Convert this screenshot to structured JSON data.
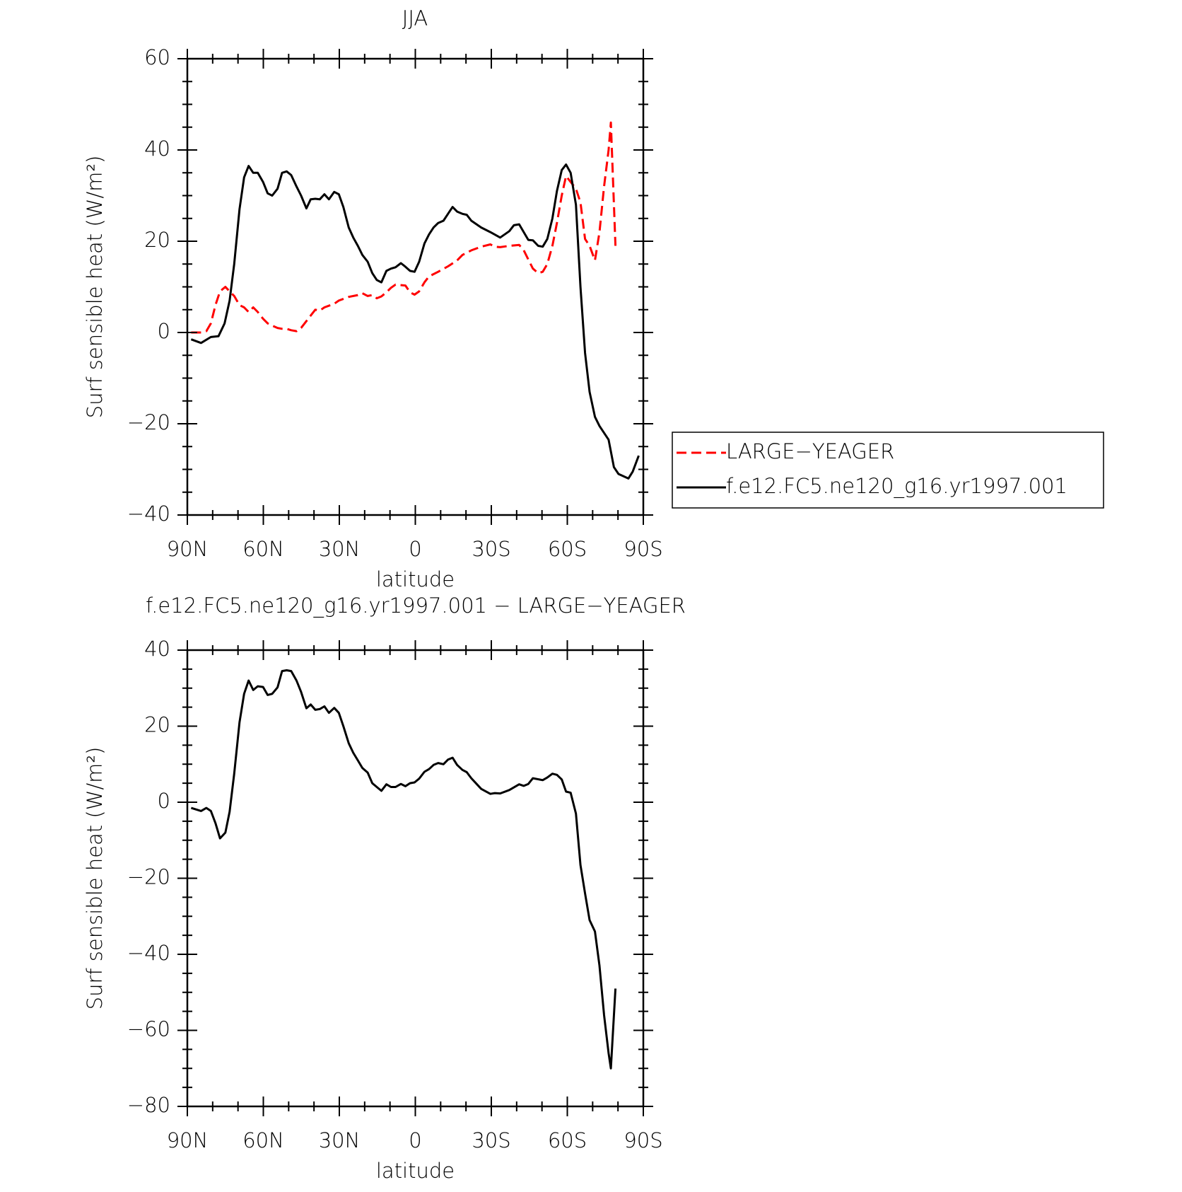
{
  "chart_data": [
    {
      "type": "line",
      "title": "JJA",
      "x_label": "latitude",
      "y_label": "Surf sensible heat (W/m²)",
      "xlim": [
        90,
        -90
      ],
      "xticks": [
        {
          "value": 90,
          "label": "90N"
        },
        {
          "value": 60,
          "label": "60N"
        },
        {
          "value": 30,
          "label": "30N"
        },
        0,
        {
          "value": -30,
          "label": "30S"
        },
        {
          "value": -60,
          "label": "60S"
        },
        {
          "value": -90,
          "label": "90S"
        }
      ],
      "xminorticks": [
        80,
        70,
        50,
        40,
        20,
        10,
        -10,
        -20,
        -40,
        -50,
        -70,
        -80
      ],
      "ylim": [
        -40,
        60
      ],
      "yticks": [
        {
          "value": -40,
          "label": "−40"
        },
        {
          "value": -20,
          "label": "−20"
        },
        0,
        20,
        40,
        60
      ],
      "yminorticks": [
        -35,
        -30,
        -25,
        -15,
        -10,
        -5,
        5,
        10,
        15,
        25,
        30,
        35,
        45,
        50,
        55
      ],
      "legend": "outside-right",
      "series": [
        {
          "name": "LARGE−YEAGER",
          "color": "#ff0000",
          "line_style": "dashed",
          "x": [
            88.5,
            84.6,
            82.5,
            80.7,
            78.9,
            77.1,
            75,
            73.3,
            71.5,
            69.4,
            67.6,
            65.8,
            64,
            62.2,
            60.1,
            58.3,
            56.5,
            54.4,
            52.6,
            50.8,
            49,
            46.9,
            45.1,
            43,
            41.3,
            39.5,
            37.7,
            35.9,
            32,
            30.2,
            26.3,
            22.7,
            20.9,
            18.8,
            17,
            15.2,
            13.4,
            11.4,
            9.6,
            7.8,
            3.9,
            2.1,
            0.3,
            -1.5,
            -3.6,
            -5.4,
            -9,
            -12.9,
            -16.5,
            -18.6,
            -22.1,
            -26,
            -29.6,
            -31.4,
            -33.5,
            -37.1,
            -41,
            -42.8,
            -44.6,
            -46.4,
            -48.5,
            -50.3,
            -52.1,
            -54.1,
            -55.9,
            -57.8,
            -59.5,
            -61.3,
            -63.4,
            -65.2,
            -67,
            -68.8,
            -70.9,
            -72.7,
            -74.5,
            -76.3,
            -77.2,
            -79
          ],
          "values": [
            0,
            0,
            0.3,
            2,
            6,
            9,
            10,
            9,
            8,
            6,
            5.5,
            4.5,
            5.5,
            4.5,
            3,
            2,
            1.5,
            1,
            0.8,
            0.8,
            0.5,
            0.3,
            1,
            2.5,
            3.7,
            5,
            4.8,
            5.5,
            6.3,
            7,
            7.8,
            8.2,
            8.6,
            8,
            8.2,
            7.5,
            7.9,
            8.8,
            9.8,
            10.5,
            10.3,
            8.8,
            8.3,
            9,
            11,
            12.3,
            13.3,
            14.5,
            15.8,
            17,
            18,
            18.8,
            19.3,
            18.8,
            18.7,
            19,
            19.2,
            18,
            16,
            14,
            13,
            13.3,
            15,
            19,
            24,
            30,
            34.3,
            33,
            31.5,
            28.5,
            20.5,
            19,
            15.8,
            22,
            32,
            40,
            46,
            19
          ]
        },
        {
          "name": "f.e12.FC5.ne120_g16.yr1997.001",
          "color": "#000000",
          "line_style": "solid",
          "x": [
            88.5,
            84.6,
            80.7,
            77.7,
            75.3,
            73.3,
            71.5,
            69.4,
            67.6,
            65.8,
            64,
            62.2,
            60.1,
            58.3,
            56.5,
            54.4,
            52.6,
            50.8,
            49,
            46.9,
            45.1,
            43,
            41.3,
            39.5,
            37.7,
            35.9,
            34.1,
            32,
            30.2,
            28.4,
            26.3,
            24.5,
            22.7,
            20.9,
            18.8,
            17,
            15.2,
            13.4,
            11.4,
            9.6,
            7.8,
            5.7,
            3.9,
            2.1,
            0.3,
            -1.5,
            -3.6,
            -5.4,
            -7.2,
            -9,
            -11.1,
            -12.9,
            -14.7,
            -16.5,
            -18.6,
            -20.3,
            -22.1,
            -26,
            -29.6,
            -33.5,
            -37.1,
            -38.9,
            -41,
            -44.6,
            -46.4,
            -48.5,
            -50.3,
            -52.1,
            -54.1,
            -55.9,
            -57.8,
            -59.5,
            -61.3,
            -63.4,
            -65.2,
            -67,
            -68.8,
            -70.9,
            -72.7,
            -76.3,
            -78.4,
            -80.2,
            -84.1,
            -85.8,
            -88.2
          ],
          "values": [
            -1.5,
            -2.3,
            -1,
            -0.8,
            2,
            7,
            15,
            27,
            34,
            36.5,
            35,
            35,
            33,
            30.5,
            30,
            31.5,
            35,
            35.3,
            34.5,
            32,
            30,
            27.2,
            29.2,
            29.3,
            29.2,
            30.3,
            29.2,
            30.8,
            30.3,
            27.5,
            23,
            20.8,
            19,
            17,
            15.5,
            13,
            11.5,
            11,
            13.5,
            14,
            14.3,
            15.2,
            14.4,
            13.5,
            13.3,
            15.5,
            19.5,
            21.5,
            23,
            24,
            24.5,
            26,
            27.5,
            26.5,
            26,
            25.8,
            24.5,
            23,
            22,
            20.8,
            22.2,
            23.5,
            23.7,
            20.3,
            20.2,
            19,
            18.8,
            20.5,
            25,
            31,
            35.6,
            36.8,
            35,
            28,
            10,
            -4.5,
            -13,
            -18.5,
            -20.5,
            -23.5,
            -29.5,
            -31,
            -32,
            -30.5,
            -27
          ]
        }
      ]
    },
    {
      "type": "line",
      "title": "f.e12.FC5.ne120_g16.yr1997.001 − LARGE−YEAGER",
      "x_label": "latitude",
      "y_label": "Surf sensible heat (W/m²)",
      "xlim": [
        90,
        -90
      ],
      "xticks": [
        {
          "value": 90,
          "label": "90N"
        },
        {
          "value": 60,
          "label": "60N"
        },
        {
          "value": 30,
          "label": "30N"
        },
        0,
        {
          "value": -30,
          "label": "30S"
        },
        {
          "value": -60,
          "label": "60S"
        },
        {
          "value": -90,
          "label": "90S"
        }
      ],
      "xminorticks": [
        80,
        70,
        50,
        40,
        20,
        10,
        -10,
        -20,
        -40,
        -50,
        -70,
        -80
      ],
      "ylim": [
        -80,
        40
      ],
      "yticks": [
        {
          "value": -80,
          "label": "−80"
        },
        {
          "value": -60,
          "label": "−60"
        },
        {
          "value": -40,
          "label": "−40"
        },
        {
          "value": -20,
          "label": "−20"
        },
        0,
        20,
        40
      ],
      "yminorticks": [
        -75,
        -70,
        -65,
        -55,
        -50,
        -45,
        -35,
        -30,
        -25,
        -15,
        -10,
        -5,
        5,
        10,
        15,
        25,
        30,
        35
      ],
      "series": [
        {
          "color": "#000000",
          "line_style": "solid",
          "x": [
            88.5,
            84.6,
            82.5,
            80.7,
            78.9,
            77.1,
            75,
            73.3,
            71.5,
            69.4,
            67.6,
            65.8,
            64,
            62.2,
            60.1,
            58.3,
            56.5,
            54.4,
            52.6,
            50.8,
            49,
            46.9,
            45.1,
            43,
            41.3,
            39.5,
            37.7,
            35.9,
            34.1,
            32,
            30.2,
            28.4,
            26.3,
            24.5,
            22.7,
            20.9,
            18.8,
            17,
            15.2,
            13.4,
            11.4,
            9.6,
            7.8,
            5.7,
            3.9,
            2.1,
            0.3,
            -1.5,
            -3.6,
            -5.4,
            -7.2,
            -9,
            -11.1,
            -12.9,
            -14.7,
            -16.5,
            -18.6,
            -20.3,
            -22.1,
            -24.2,
            -26,
            -29.6,
            -31.4,
            -33.5,
            -37.1,
            -41,
            -42.8,
            -44.6,
            -46.4,
            -50.3,
            -52.1,
            -54.1,
            -55.9,
            -57.8,
            -59.5,
            -61.3,
            -63.4,
            -65.2,
            -67,
            -68.8,
            -70.9,
            -72.7,
            -74.5,
            -76.3,
            -77.2,
            -79
          ],
          "values": [
            -1.5,
            -2.3,
            -1.5,
            -2.3,
            -5.5,
            -9.5,
            -8,
            -2.5,
            7.5,
            21,
            28.5,
            32,
            29.5,
            30.5,
            30.3,
            28.2,
            28.5,
            30.2,
            34.5,
            34.7,
            34.5,
            32,
            29,
            24.7,
            25.7,
            24.3,
            24.5,
            25.2,
            23.5,
            24.8,
            23.5,
            20,
            15.5,
            13,
            11,
            9,
            7.8,
            5,
            4,
            3,
            4.7,
            4,
            4,
            4.8,
            4.2,
            5,
            5.2,
            6.2,
            8,
            8.7,
            9.8,
            10.3,
            10,
            11.2,
            11.7,
            9.8,
            8.5,
            7.9,
            6.3,
            4.8,
            3.5,
            2.2,
            2.4,
            2.3,
            3.2,
            4.7,
            4.3,
            4.8,
            6.3,
            5.8,
            6.5,
            7.5,
            7.2,
            6,
            2.8,
            2.5,
            -3,
            -16.5,
            -24,
            -31,
            -34,
            -43,
            -56,
            -66,
            -70,
            -49
          ]
        }
      ]
    }
  ]
}
